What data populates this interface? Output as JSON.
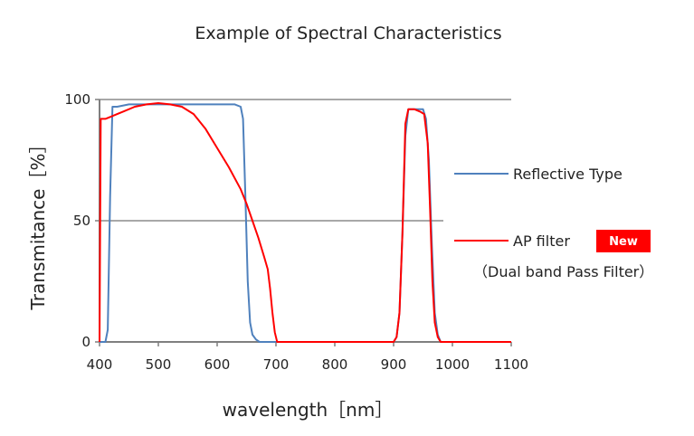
{
  "chart_data": {
    "type": "line",
    "title": "Example of Spectral Characteristics",
    "xlabel": "wavelength［nm］",
    "ylabel": "Transmitance［%］",
    "xlim": [
      400,
      1100
    ],
    "ylim": [
      0,
      100
    ],
    "xticks": [
      "400",
      "500",
      "600",
      "700",
      "800",
      "900",
      "1000",
      "1100"
    ],
    "yticks": [
      "0",
      "50",
      "100"
    ],
    "grid": "horizontal",
    "legend_position": "right",
    "series": [
      {
        "name": "Reflective Type",
        "color": "#4f81bd",
        "x": [
          400,
          410,
          414,
          418,
          422,
          430,
          450,
          500,
          550,
          600,
          630,
          640,
          644,
          648,
          652,
          656,
          660,
          666,
          672,
          680,
          700,
          800,
          900,
          905,
          910,
          915,
          920,
          925,
          930,
          940,
          950,
          955,
          960,
          965,
          970,
          975,
          980,
          1000,
          1100
        ],
        "y": [
          0,
          0,
          5,
          60,
          97,
          97,
          98,
          98,
          98,
          98,
          98,
          97,
          92,
          60,
          25,
          8,
          3,
          1,
          0,
          0,
          0,
          0,
          0,
          2,
          12,
          45,
          85,
          96,
          96,
          96,
          96,
          92,
          75,
          40,
          12,
          3,
          0,
          0,
          0
        ]
      },
      {
        "name": "AP filter",
        "badge": "New",
        "note": "（Dual band Pass Filter）",
        "color": "#ff0000",
        "badge_color": "#ff0000",
        "x": [
          400,
          402,
          410,
          420,
          440,
          460,
          480,
          500,
          520,
          540,
          560,
          580,
          600,
          620,
          640,
          650,
          660,
          670,
          680,
          686,
          690,
          694,
          698,
          702,
          710,
          750,
          800,
          850,
          900,
          905,
          910,
          915,
          920,
          925,
          935,
          945,
          952,
          958,
          962,
          966,
          970,
          975,
          980,
          1000,
          1100
        ],
        "y": [
          0,
          92,
          92,
          93,
          95,
          97,
          98,
          98.5,
          98,
          97,
          94,
          88,
          80,
          72,
          63,
          57,
          50,
          43,
          35,
          30,
          22,
          12,
          4,
          0,
          0,
          0,
          0,
          0,
          0,
          2,
          12,
          45,
          90,
          96,
          96,
          95,
          94,
          82,
          55,
          25,
          8,
          2,
          0,
          0,
          0
        ]
      }
    ]
  }
}
